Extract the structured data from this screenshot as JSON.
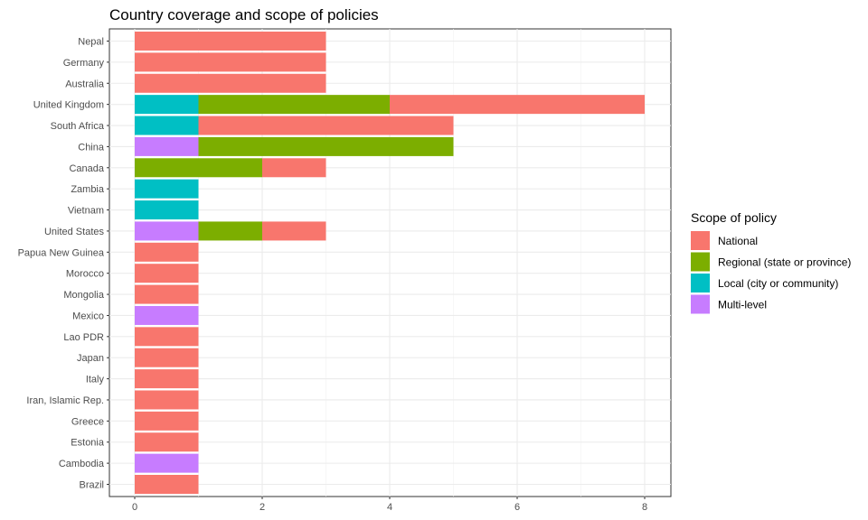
{
  "chart_data": {
    "type": "bar",
    "orientation": "horizontal",
    "stacked": true,
    "title": "Country coverage and scope of policies",
    "xlabel": "",
    "ylabel": "",
    "xlim": [
      0,
      8.25
    ],
    "xticks": [
      0,
      2,
      4,
      6,
      8
    ],
    "grid": true,
    "legend_position": "right",
    "legend_title": "Scope of policy",
    "categories": [
      "Nepal",
      "Germany",
      "Australia",
      "United Kingdom",
      "South Africa",
      "China",
      "Canada",
      "Zambia",
      "Vietnam",
      "United States",
      "Papua New Guinea",
      "Morocco",
      "Mongolia",
      "Mexico",
      "Lao PDR",
      "Japan",
      "Italy",
      "Iran, Islamic Rep.",
      "Greece",
      "Estonia",
      "Cambodia",
      "Brazil"
    ],
    "series": [
      {
        "name": "Multi-level",
        "color": "#C77CFF",
        "values": [
          0,
          0,
          0,
          0,
          0,
          1,
          0,
          0,
          0,
          1,
          0,
          0,
          0,
          1,
          0,
          0,
          0,
          0,
          0,
          0,
          1,
          0
        ]
      },
      {
        "name": "Local (city or community)",
        "color": "#00BFC4",
        "values": [
          0,
          0,
          0,
          1,
          1,
          0,
          0,
          1,
          1,
          0,
          0,
          0,
          0,
          0,
          0,
          0,
          0,
          0,
          0,
          0,
          0,
          0
        ]
      },
      {
        "name": "Regional (state or province)",
        "color": "#7CAE00",
        "values": [
          0,
          0,
          0,
          3,
          0,
          4,
          2,
          0,
          0,
          1,
          0,
          0,
          0,
          0,
          0,
          0,
          0,
          0,
          0,
          0,
          0,
          0
        ]
      },
      {
        "name": "National",
        "color": "#F8766D",
        "values": [
          3,
          3,
          3,
          4,
          4,
          0,
          1,
          0,
          0,
          1,
          1,
          1,
          1,
          0,
          1,
          1,
          1,
          1,
          1,
          1,
          0,
          1
        ]
      }
    ],
    "legend_order": [
      "National",
      "Regional (state or province)",
      "Local (city or community)",
      "Multi-level"
    ]
  }
}
